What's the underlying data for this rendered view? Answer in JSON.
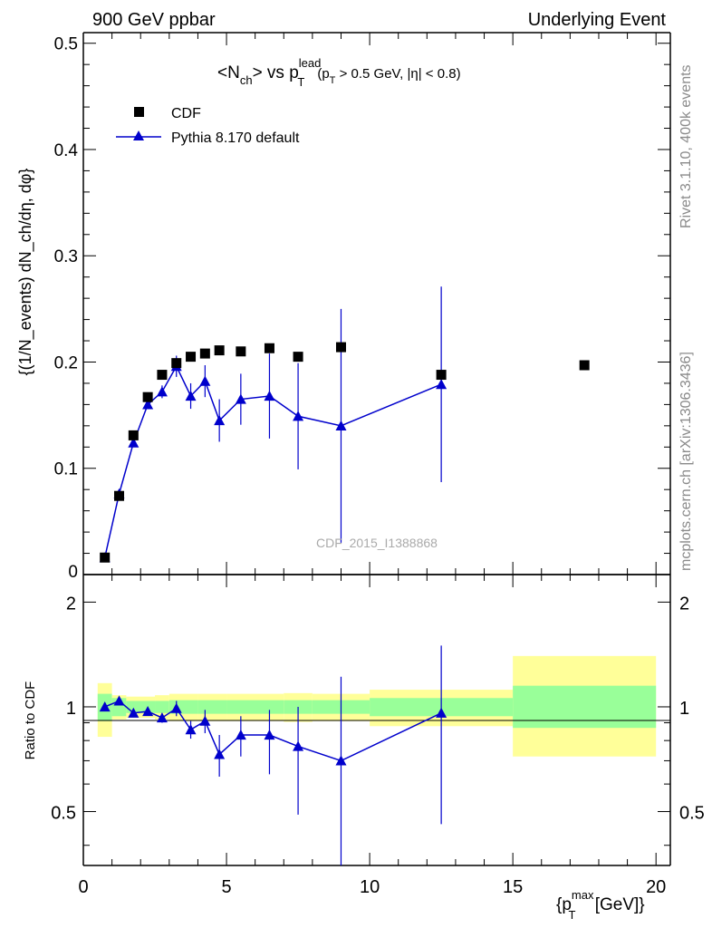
{
  "header": {
    "left": "900 GeV ppbar",
    "right": "Underlying Event"
  },
  "side_text": {
    "rivet": "Rivet 3.1.10,  400k events",
    "mcplots": "mcplots.cern.ch [arXiv:1306.3436]"
  },
  "watermark": "CDF_2015_I1388868",
  "colors": {
    "mc": "#0000cc",
    "band_inner": "#99ff99",
    "band_outer": "#ffff99",
    "data": "#000000"
  },
  "chart_data": [
    {
      "type": "scatter",
      "panel": "main",
      "title": {
        "prefix": "<N",
        "ch_sub": "ch",
        "mid": "> vs p",
        "lead_sup": "lead",
        "T_sub": "T",
        "cut_open": "(p",
        "cut_T": "T",
        "cut_rest": " > 0.5 GeV, |η| < 0.8)"
      },
      "ylabel": "{(1/N_events) dN_ch/dη, dφ}",
      "ylim": [
        0,
        0.51
      ],
      "xlim": [
        0,
        20.5
      ],
      "yticks": [
        {
          "v": 0.1,
          "label": "0.1"
        },
        {
          "v": 0.2,
          "label": "0.2"
        },
        {
          "v": 0.3,
          "label": "0.3"
        },
        {
          "v": 0.4,
          "label": "0.4"
        },
        {
          "v": 0.5,
          "label": "0.5"
        },
        {
          "v": 0,
          "label": "0"
        }
      ],
      "legend": {
        "placement": "top-left",
        "entries": [
          "CDF",
          "Pythia 8.170 default"
        ]
      },
      "series": [
        {
          "name": "CDF",
          "x": [
            0.75,
            1.25,
            1.75,
            2.25,
            2.75,
            3.25,
            3.75,
            4.25,
            4.75,
            5.5,
            6.5,
            7.5,
            9.0,
            12.5,
            17.5
          ],
          "y": [
            0.016,
            0.074,
            0.131,
            0.167,
            0.188,
            0.199,
            0.205,
            0.208,
            0.211,
            0.21,
            0.213,
            0.205,
            0.214,
            0.188,
            0.197
          ]
        },
        {
          "name": "Pythia 8.170 default",
          "x": [
            0.75,
            1.25,
            1.75,
            2.25,
            2.75,
            3.25,
            3.75,
            4.25,
            4.75,
            5.5,
            6.5,
            7.5,
            9.0,
            12.5
          ],
          "y": [
            0.016,
            0.076,
            0.124,
            0.16,
            0.172,
            0.196,
            0.168,
            0.182,
            0.145,
            0.165,
            0.168,
            0.149,
            0.14,
            0.179
          ],
          "err": [
            0.001,
            0.002,
            0.003,
            0.004,
            0.006,
            0.01,
            0.012,
            0.015,
            0.02,
            0.024,
            0.04,
            0.05,
            0.11,
            0.092
          ]
        }
      ]
    },
    {
      "type": "scatter",
      "panel": "ratio",
      "ylabel": "Ratio to CDF",
      "xlabel": "{p_T^max [GeV]}",
      "xlabel_parts": {
        "open": "{p",
        "T_sub": "T",
        "max_sup": "max",
        "rest": " [GeV]}"
      },
      "ylim": [
        0.35,
        2.4
      ],
      "yscale": "log",
      "xlim": [
        0,
        20.5
      ],
      "xticks": [
        {
          "v": 0,
          "label": "0"
        },
        {
          "v": 5,
          "label": "5"
        },
        {
          "v": 10,
          "label": "10"
        },
        {
          "v": 15,
          "label": "15"
        },
        {
          "v": 20,
          "label": "20"
        }
      ],
      "yticks": [
        {
          "v": 0.5,
          "label": "0.5"
        },
        {
          "v": 1,
          "label": "1"
        },
        {
          "v": 2,
          "label": "2"
        }
      ],
      "bands": [
        {
          "x0": 0.5,
          "x1": 1.0,
          "inner": [
            0.91,
            1.09
          ],
          "outer": [
            0.82,
            1.17
          ]
        },
        {
          "x0": 1.0,
          "x1": 1.5,
          "inner": [
            0.94,
            1.06
          ],
          "outer": [
            0.92,
            1.08
          ]
        },
        {
          "x0": 1.5,
          "x1": 2.5,
          "inner": [
            0.96,
            1.04
          ],
          "outer": [
            0.93,
            1.07
          ]
        },
        {
          "x0": 2.5,
          "x1": 3.0,
          "inner": [
            0.96,
            1.04
          ],
          "outer": [
            0.92,
            1.08
          ]
        },
        {
          "x0": 3.0,
          "x1": 4.0,
          "inner": [
            0.955,
            1.045
          ],
          "outer": [
            0.91,
            1.09
          ]
        },
        {
          "x0": 4.0,
          "x1": 5.0,
          "inner": [
            0.955,
            1.045
          ],
          "outer": [
            0.91,
            1.09
          ]
        },
        {
          "x0": 5.0,
          "x1": 7.0,
          "inner": [
            0.955,
            1.045
          ],
          "outer": [
            0.91,
            1.09
          ]
        },
        {
          "x0": 7.0,
          "x1": 8.0,
          "inner": [
            0.955,
            1.045
          ],
          "outer": [
            0.905,
            1.095
          ]
        },
        {
          "x0": 8.0,
          "x1": 10.0,
          "inner": [
            0.955,
            1.045
          ],
          "outer": [
            0.91,
            1.09
          ]
        },
        {
          "x0": 10.0,
          "x1": 15.0,
          "inner": [
            0.94,
            1.06
          ],
          "outer": [
            0.88,
            1.12
          ]
        },
        {
          "x0": 15.0,
          "x1": 20.0,
          "inner": [
            0.87,
            1.15
          ],
          "outer": [
            0.72,
            1.4
          ]
        }
      ],
      "series": [
        {
          "name": "Pythia 8.170 default",
          "x": [
            0.75,
            1.25,
            1.75,
            2.25,
            2.75,
            3.25,
            3.75,
            4.25,
            4.75,
            5.5,
            6.5,
            7.5,
            9.0,
            12.5
          ],
          "y": [
            1.0,
            1.04,
            0.96,
            0.97,
            0.93,
            0.99,
            0.86,
            0.91,
            0.73,
            0.83,
            0.83,
            0.77,
            0.7,
            0.96
          ],
          "err_lo": [
            0.02,
            0.02,
            0.02,
            0.02,
            0.03,
            0.05,
            0.05,
            0.07,
            0.1,
            0.11,
            0.19,
            0.28,
            0.4,
            0.5
          ],
          "err_hi": [
            0.02,
            0.02,
            0.02,
            0.02,
            0.03,
            0.05,
            0.05,
            0.07,
            0.1,
            0.11,
            0.15,
            0.23,
            0.52,
            0.54
          ]
        }
      ]
    }
  ]
}
